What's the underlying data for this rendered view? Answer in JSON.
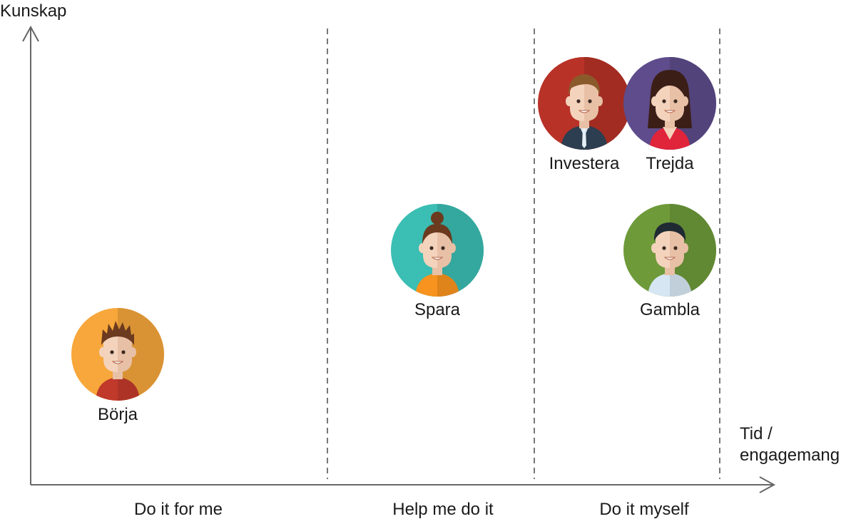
{
  "axes": {
    "y_label": "Kunskap",
    "x_label_line1": "Tid /",
    "x_label_line2": "engagemang",
    "axis_color": "#666666"
  },
  "segments": [
    {
      "label": "Do it for me"
    },
    {
      "label": "Help me do it"
    },
    {
      "label": "Do it myself"
    }
  ],
  "personas": [
    {
      "name": "Börja",
      "bg": "#F7A73B",
      "hair": "#6B3A1F",
      "shirt": "#C0392B",
      "icon": "boy-avatar-icon"
    },
    {
      "name": "Spara",
      "bg": "#3BBEB3",
      "hair": "#6B3A1F",
      "shirt": "#F7931E",
      "icon": "woman-bun-avatar-icon"
    },
    {
      "name": "Investera",
      "bg": "#B83227",
      "hair": "#8B5A2B",
      "shirt": "#2C3E50",
      "icon": "man-suit-avatar-icon"
    },
    {
      "name": "Trejda",
      "bg": "#5E4C8C",
      "hair": "#3B1F17",
      "shirt": "#E0243A",
      "icon": "woman-long-hair-avatar-icon"
    },
    {
      "name": "Gambla",
      "bg": "#6E9A3A",
      "hair": "#1F2A33",
      "shirt": "#D6E6F2",
      "icon": "man-casual-avatar-icon"
    }
  ]
}
